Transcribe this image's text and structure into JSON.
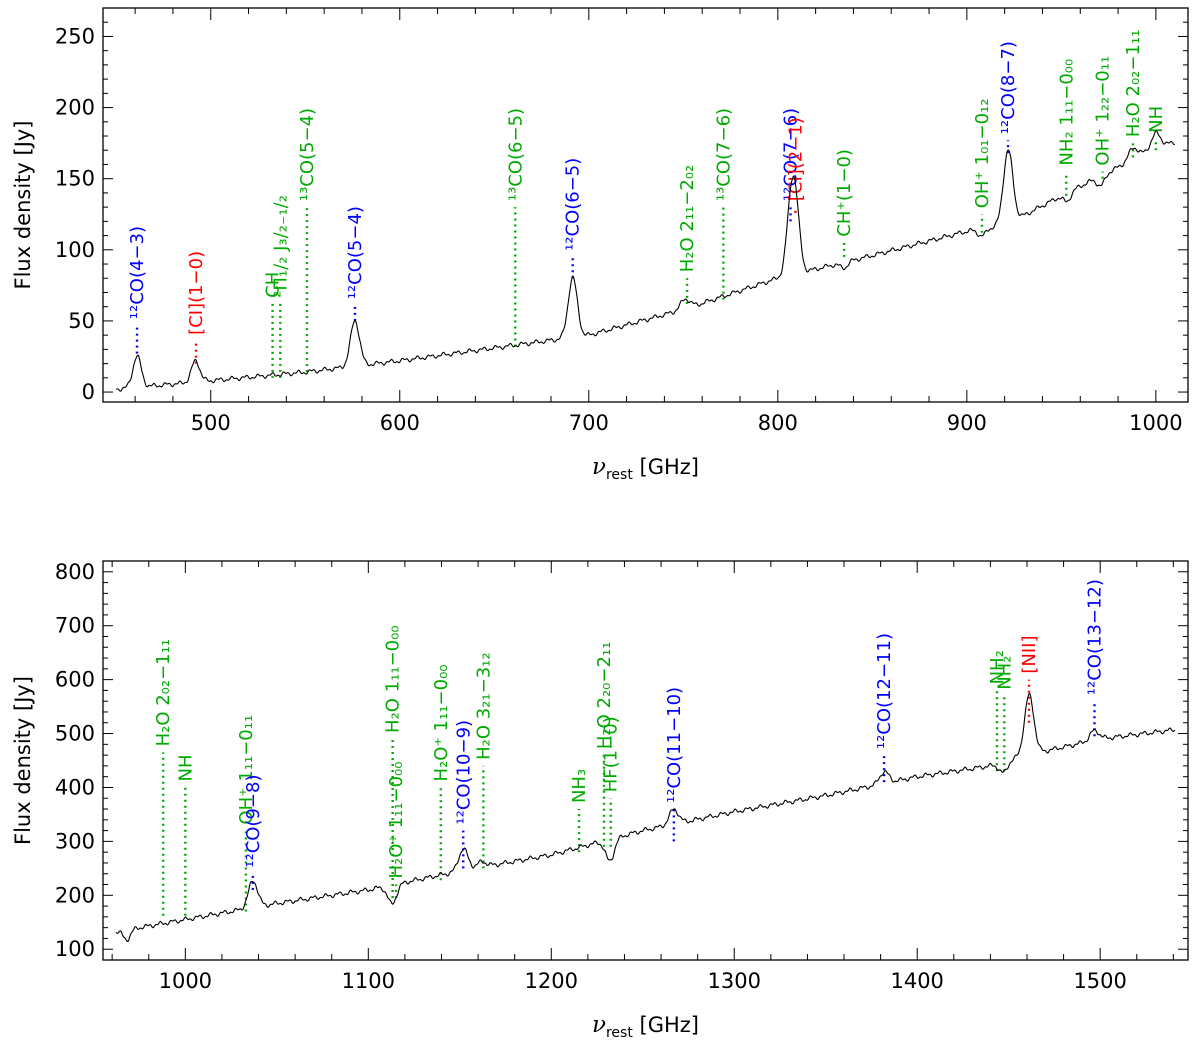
{
  "colors": {
    "12CO": "#0000ff",
    "other": "#00aa00",
    "atomic": "#ff0000",
    "spectrum": "#000000"
  },
  "chart_data": [
    {
      "type": "line",
      "xlabel": "ν_rest [GHz]",
      "xlabel_main": "ν",
      "xlabel_sub": "rest",
      "xlabel_unit": " [GHz]",
      "ylabel": "Flux density [Jy]",
      "xlim": [
        443,
        1017
      ],
      "ylim": [
        -7,
        270
      ],
      "xticks": [
        500,
        600,
        700,
        800,
        900,
        1000
      ],
      "yticks": [
        0,
        50,
        100,
        150,
        200,
        250
      ],
      "xtick_labels": [
        "500",
        "600",
        "700",
        "800",
        "900",
        "1000"
      ],
      "ytick_labels": [
        "0",
        "50",
        "100",
        "150",
        "200",
        "250"
      ],
      "continuum": [
        [
          450,
          2
        ],
        [
          500,
          8
        ],
        [
          550,
          14
        ],
        [
          600,
          22
        ],
        [
          650,
          31
        ],
        [
          700,
          40
        ],
        [
          750,
          58
        ],
        [
          800,
          80
        ],
        [
          850,
          96
        ],
        [
          900,
          113
        ],
        [
          920,
          117
        ],
        [
          950,
          138
        ],
        [
          980,
          158
        ],
        [
          1000,
          172
        ],
        [
          1017,
          178
        ]
      ],
      "peaks": [
        {
          "x": 461,
          "height": 22,
          "width": 2.2
        },
        {
          "x": 492,
          "height": 15,
          "width": 2.2
        },
        {
          "x": 576.3,
          "height": 32,
          "width": 2.4
        },
        {
          "x": 691.5,
          "height": 42,
          "width": 2.4
        },
        {
          "x": 751,
          "height": 7,
          "width": 2.5
        },
        {
          "x": 806.7,
          "height": 38,
          "width": 2.3
        },
        {
          "x": 809.3,
          "height": 44,
          "width": 2.3
        },
        {
          "x": 921.8,
          "height": 52,
          "width": 2.5
        },
        {
          "x": 988,
          "height": 8,
          "width": 2.5
        },
        {
          "x": 1000,
          "height": 10,
          "width": 2.5
        }
      ],
      "absorptions": [
        {
          "x": 835,
          "depth": 4,
          "width": 2
        },
        {
          "x": 908,
          "depth": 5,
          "width": 2
        },
        {
          "x": 953,
          "depth": 6,
          "width": 2
        },
        {
          "x": 971,
          "depth": 7,
          "width": 2
        }
      ],
      "lines": [
        {
          "x": 461.0,
          "label": "¹²CO(4−3)",
          "cls": "12CO",
          "y0": 27,
          "y1": 47
        },
        {
          "x": 492.2,
          "label": "[CI](1−0)",
          "cls": "atomic",
          "y0": 20,
          "y1": 36
        },
        {
          "x": 532.7,
          "label": "CH",
          "cls": "other",
          "y0": 10,
          "y1": 62
        },
        {
          "x": 536.8,
          "label": "²Π₁/₂  J₃/₂₋₁/₂",
          "cls": "other",
          "y0": 10,
          "y1": 62
        },
        {
          "x": 550.9,
          "label": "¹³CO(5−4)",
          "cls": "other",
          "y0": 14,
          "y1": 130
        },
        {
          "x": 576.3,
          "label": "¹²CO(5−4)",
          "cls": "12CO",
          "y0": 50,
          "y1": 61
        },
        {
          "x": 661.1,
          "label": "¹³CO(6−5)",
          "cls": "other",
          "y0": 32,
          "y1": 130
        },
        {
          "x": 691.5,
          "label": "¹²CO(6−5)",
          "cls": "12CO",
          "y0": 80,
          "y1": 95
        },
        {
          "x": 752.0,
          "label": "H₂O 2₁₁−2₀₂",
          "cls": "other",
          "y0": 62,
          "y1": 80
        },
        {
          "x": 771.2,
          "label": "¹³CO(7−6)",
          "cls": "other",
          "y0": 65,
          "y1": 130
        },
        {
          "x": 806.7,
          "label": "¹²CO(7−6)",
          "cls": "12CO",
          "y0": 120,
          "y1": 130
        },
        {
          "x": 809.3,
          "label": "[CI](2−1)",
          "cls": "atomic",
          "y0": 126,
          "y1": 130
        },
        {
          "x": 835.1,
          "label": "CH⁺(1−0)",
          "cls": "other",
          "y0": 95,
          "y1": 105
        },
        {
          "x": 908.0,
          "label": "OH⁺ 1₀₁−0₁₂",
          "cls": "other",
          "y0": 112,
          "y1": 125
        },
        {
          "x": 921.8,
          "label": "¹²CO(8−7)",
          "cls": "12CO",
          "y0": 168,
          "y1": 177
        },
        {
          "x": 952.6,
          "label": "NH₂ 1₁₁−0₀₀",
          "cls": "other",
          "y0": 138,
          "y1": 155
        },
        {
          "x": 971.8,
          "label": "OH⁺ 1₂₂−0₁₁",
          "cls": "other",
          "y0": 150,
          "y1": 155
        },
        {
          "x": 987.9,
          "label": "H₂O 2₀₂−1₁₁",
          "cls": "other",
          "y0": 165,
          "y1": 175
        },
        {
          "x": 1000.0,
          "label": "NH",
          "cls": "other",
          "y0": 170,
          "y1": 178
        }
      ]
    },
    {
      "type": "line",
      "xlabel": "ν_rest [GHz]",
      "xlabel_main": "ν",
      "xlabel_sub": "rest",
      "xlabel_unit": " [GHz]",
      "ylabel": "Flux density [Jy]",
      "xlim": [
        955,
        1548
      ],
      "ylim": [
        80,
        820
      ],
      "xticks": [
        1000,
        1100,
        1200,
        1300,
        1400,
        1500
      ],
      "yticks": [
        100,
        200,
        300,
        400,
        500,
        600,
        700,
        800
      ],
      "xtick_labels": [
        "1000",
        "1100",
        "1200",
        "1300",
        "1400",
        "1500"
      ],
      "ytick_labels": [
        "100",
        "200",
        "300",
        "400",
        "500",
        "600",
        "700",
        "800"
      ],
      "continuum": [
        [
          958,
          130
        ],
        [
          1000,
          155
        ],
        [
          1050,
          185
        ],
        [
          1100,
          210
        ],
        [
          1150,
          245
        ],
        [
          1200,
          275
        ],
        [
          1250,
          320
        ],
        [
          1300,
          355
        ],
        [
          1350,
          385
        ],
        [
          1400,
          420
        ],
        [
          1440,
          440
        ],
        [
          1460,
          460
        ],
        [
          1500,
          490
        ],
        [
          1548,
          510
        ]
      ],
      "peaks": [
        {
          "x": 1037,
          "height": 50,
          "width": 2.5
        },
        {
          "x": 1151.9,
          "height": 40,
          "width": 2.5
        },
        {
          "x": 1162,
          "height": 10,
          "width": 2.5
        },
        {
          "x": 1267,
          "height": 28,
          "width": 2.5
        },
        {
          "x": 1381.9,
          "height": 22,
          "width": 2.5
        },
        {
          "x": 1461.2,
          "height": 110,
          "width": 2.6
        },
        {
          "x": 1496.9,
          "height": 18,
          "width": 2.5
        }
      ],
      "absorptions": [
        {
          "x": 968,
          "depth": 18,
          "width": 2
        },
        {
          "x": 1113,
          "depth": 35,
          "width": 2.4
        },
        {
          "x": 1232,
          "depth": 40,
          "width": 2.4
        },
        {
          "x": 1447,
          "depth": 20,
          "width": 2.2
        }
      ],
      "lines": [
        {
          "x": 987.9,
          "label": "H₂O 2₀₂−1₁₁",
          "cls": "other",
          "y0": 162,
          "y1": 465
        },
        {
          "x": 1000.0,
          "label": "NH",
          "cls": "other",
          "y0": 162,
          "y1": 400
        },
        {
          "x": 1033.1,
          "label": "OH⁺ 1₁₁−0₁₁",
          "cls": "other",
          "y0": 170,
          "y1": 320
        },
        {
          "x": 1036.9,
          "label": "¹²CO(9−8)",
          "cls": "12CO",
          "y0": 210,
          "y1": 240
        },
        {
          "x": 1113.3,
          "label": "H₂O 1₁₁−0₀₀",
          "cls": "other",
          "y0": 195,
          "y1": 490
        },
        {
          "x": 1115.2,
          "label": "H₂O⁺ 1₁₁−0₀₀",
          "cls": "other",
          "y0": 195,
          "y1": 220
        },
        {
          "x": 1139.6,
          "label": "H₂O⁺ 1₁₁−0₀₀",
          "cls": "other",
          "y0": 228,
          "y1": 400
        },
        {
          "x": 1151.9,
          "label": "¹²CO(10−9)",
          "cls": "12CO",
          "y0": 250,
          "y1": 320
        },
        {
          "x": 1162.9,
          "label": "H₂O 3₂₁−3₁₂",
          "cls": "other",
          "y0": 250,
          "y1": 440
        },
        {
          "x": 1215.2,
          "label": "NH₃",
          "cls": "other",
          "y0": 280,
          "y1": 360
        },
        {
          "x": 1228.8,
          "label": "H₂O 2₂₀−2₁₁",
          "cls": "other",
          "y0": 290,
          "y1": 460
        },
        {
          "x": 1232.5,
          "label": "HF(1−0)",
          "cls": "other",
          "y0": 290,
          "y1": 380
        },
        {
          "x": 1267.0,
          "label": "¹²CO(11−10)",
          "cls": "12CO",
          "y0": 300,
          "y1": 360
        },
        {
          "x": 1381.9,
          "label": "¹²CO(12−11)",
          "cls": "12CO",
          "y0": 410,
          "y1": 460
        },
        {
          "x": 1443.6,
          "label": "NH₂",
          "cls": "other",
          "y0": 430,
          "y1": 580
        },
        {
          "x": 1447.6,
          "label": "NH₂",
          "cls": "other",
          "y0": 430,
          "y1": 570
        },
        {
          "x": 1461.1,
          "label": "[NII]",
          "cls": "atomic",
          "y0": 520,
          "y1": 600
        },
        {
          "x": 1496.9,
          "label": "¹²CO(13−12)",
          "cls": "12CO",
          "y0": 495,
          "y1": 560
        }
      ]
    }
  ]
}
